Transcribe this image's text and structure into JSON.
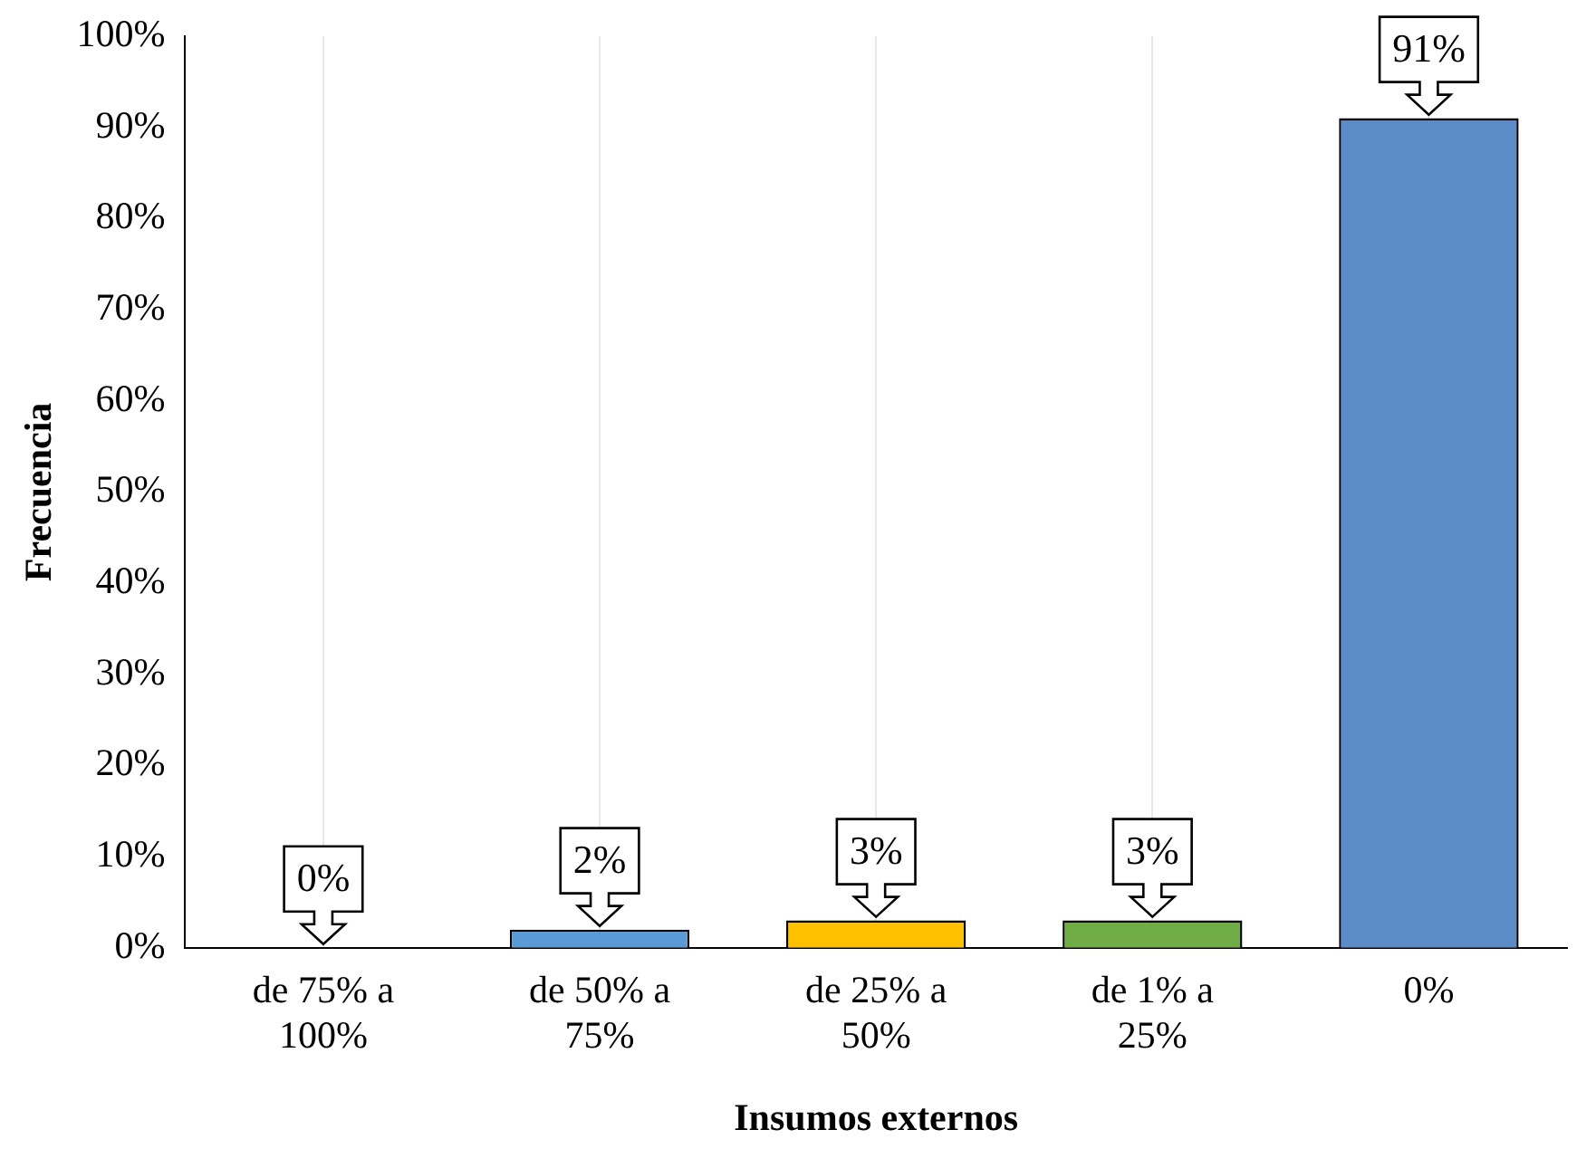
{
  "chart_data": {
    "type": "bar",
    "xlabel": "Insumos externos",
    "ylabel": "Frecuencia",
    "categories": [
      "de 75% a 100%",
      "de 50% a 75%",
      "de 25% a 50%",
      "de 1% a 25%",
      "0%"
    ],
    "values": [
      0,
      2,
      3,
      3,
      91
    ],
    "colors": [
      "#5b9bd5",
      "#5b9bd5",
      "#ffc000",
      "#70ad47",
      "#5b8cc8"
    ],
    "value_labels": [
      "0%",
      "2%",
      "3%",
      "3%",
      "91%"
    ],
    "ylim": [
      0,
      100
    ],
    "yticks": [
      {
        "value": 0,
        "label": "0%"
      },
      {
        "value": 10,
        "label": "10%"
      },
      {
        "value": 20,
        "label": "20%"
      },
      {
        "value": 30,
        "label": "30%"
      },
      {
        "value": 40,
        "label": "40%"
      },
      {
        "value": 50,
        "label": "50%"
      },
      {
        "value": 60,
        "label": "60%"
      },
      {
        "value": 70,
        "label": "70%"
      },
      {
        "value": 80,
        "label": "80%"
      },
      {
        "value": 90,
        "label": "90%"
      },
      {
        "value": 100,
        "label": "100%"
      }
    ],
    "grid": "x",
    "legend": false
  }
}
